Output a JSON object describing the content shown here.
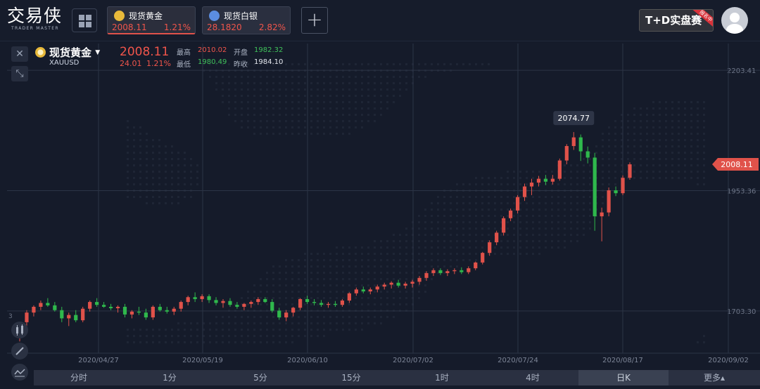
{
  "app": {
    "logo_cn": "交易侠",
    "logo_en": "TRADER MASTER"
  },
  "tabs": [
    {
      "name": "现货黄金",
      "price": "2008.11",
      "pct": "1.21%",
      "coin_color": "#e8b93a"
    },
    {
      "name": "现货白银",
      "price": "28.1820",
      "pct": "2.82%",
      "coin_color": "#5b8de0"
    }
  ],
  "add_label": "+",
  "td_badge": {
    "label": "T+D实盘赛",
    "ribbon": "报名中"
  },
  "instrument": {
    "name": "现货黄金",
    "code": "XAUUSD",
    "price": "2008.11",
    "change": "24.01",
    "pct": "1.21%",
    "high_label": "最高",
    "high": "2010.02",
    "open_label": "开盘",
    "open": "1982.32",
    "low_label": "最低",
    "low": "1980.49",
    "prev_label": "昨收",
    "prev": "1984.10"
  },
  "chart_data": {
    "type": "candlestick",
    "y_ticks": [
      "2203.41",
      "1953.36",
      "1703.30"
    ],
    "x_ticks": [
      "2020/04/27",
      "2020/05/19",
      "2020/06/10",
      "2020/07/02",
      "2020/07/24",
      "2020/08/17",
      "2020/09/02"
    ],
    "ylim": [
      1620,
      2240
    ],
    "current_price": "2008.11",
    "max_label": "2074.77",
    "left_edge_label": "3",
    "candles": [
      [
        1648,
        1680,
        1640,
        1675
      ],
      [
        1680,
        1705,
        1670,
        1700
      ],
      [
        1700,
        1715,
        1692,
        1712
      ],
      [
        1712,
        1725,
        1705,
        1720
      ],
      [
        1720,
        1730,
        1712,
        1715
      ],
      [
        1715,
        1722,
        1702,
        1705
      ],
      [
        1705,
        1712,
        1680,
        1688
      ],
      [
        1688,
        1700,
        1672,
        1695
      ],
      [
        1695,
        1705,
        1680,
        1684
      ],
      [
        1684,
        1712,
        1680,
        1708
      ],
      [
        1708,
        1725,
        1702,
        1722
      ],
      [
        1722,
        1730,
        1712,
        1716
      ],
      [
        1716,
        1722,
        1710,
        1712
      ],
      [
        1712,
        1718,
        1705,
        1709
      ],
      [
        1709,
        1715,
        1700,
        1712
      ],
      [
        1712,
        1718,
        1690,
        1696
      ],
      [
        1696,
        1705,
        1688,
        1702
      ],
      [
        1702,
        1712,
        1695,
        1700
      ],
      [
        1700,
        1708,
        1685,
        1690
      ],
      [
        1690,
        1715,
        1685,
        1712
      ],
      [
        1712,
        1718,
        1702,
        1705
      ],
      [
        1705,
        1712,
        1698,
        1702
      ],
      [
        1702,
        1712,
        1695,
        1708
      ],
      [
        1708,
        1725,
        1702,
        1722
      ],
      [
        1722,
        1735,
        1715,
        1732
      ],
      [
        1732,
        1742,
        1722,
        1728
      ],
      [
        1728,
        1738,
        1722,
        1734
      ],
      [
        1734,
        1738,
        1720,
        1726
      ],
      [
        1726,
        1732,
        1715,
        1720
      ],
      [
        1720,
        1728,
        1710,
        1724
      ],
      [
        1724,
        1730,
        1712,
        1716
      ],
      [
        1716,
        1722,
        1708,
        1712
      ],
      [
        1712,
        1720,
        1705,
        1718
      ],
      [
        1718,
        1725,
        1710,
        1722
      ],
      [
        1722,
        1732,
        1716,
        1728
      ],
      [
        1728,
        1732,
        1720,
        1722
      ],
      [
        1722,
        1728,
        1700,
        1704
      ],
      [
        1704,
        1710,
        1685,
        1690
      ],
      [
        1690,
        1705,
        1682,
        1700
      ],
      [
        1700,
        1712,
        1692,
        1710
      ],
      [
        1710,
        1730,
        1705,
        1728
      ],
      [
        1728,
        1735,
        1718,
        1722
      ],
      [
        1722,
        1728,
        1715,
        1720
      ],
      [
        1720,
        1726,
        1712,
        1716
      ],
      [
        1716,
        1722,
        1710,
        1718
      ],
      [
        1718,
        1724,
        1712,
        1716
      ],
      [
        1716,
        1728,
        1712,
        1725
      ],
      [
        1725,
        1742,
        1720,
        1740
      ],
      [
        1740,
        1752,
        1735,
        1748
      ],
      [
        1748,
        1754,
        1740,
        1744
      ],
      [
        1744,
        1752,
        1738,
        1748
      ],
      [
        1748,
        1758,
        1742,
        1754
      ],
      [
        1754,
        1762,
        1748,
        1758
      ],
      [
        1758,
        1765,
        1750,
        1762
      ],
      [
        1762,
        1768,
        1752,
        1756
      ],
      [
        1756,
        1764,
        1750,
        1760
      ],
      [
        1760,
        1768,
        1752,
        1764
      ],
      [
        1764,
        1776,
        1758,
        1772
      ],
      [
        1772,
        1786,
        1766,
        1782
      ],
      [
        1782,
        1792,
        1776,
        1788
      ],
      [
        1788,
        1792,
        1778,
        1782
      ],
      [
        1782,
        1790,
        1776,
        1786
      ],
      [
        1786,
        1792,
        1780,
        1788
      ],
      [
        1788,
        1794,
        1780,
        1784
      ],
      [
        1784,
        1796,
        1780,
        1792
      ],
      [
        1792,
        1806,
        1788,
        1804
      ],
      [
        1804,
        1826,
        1800,
        1824
      ],
      [
        1824,
        1850,
        1818,
        1846
      ],
      [
        1846,
        1870,
        1840,
        1866
      ],
      [
        1866,
        1900,
        1860,
        1896
      ],
      [
        1896,
        1916,
        1890,
        1912
      ],
      [
        1912,
        1944,
        1906,
        1940
      ],
      [
        1940,
        1968,
        1932,
        1962
      ],
      [
        1962,
        1978,
        1944,
        1970
      ],
      [
        1970,
        1984,
        1962,
        1978
      ],
      [
        1978,
        1986,
        1965,
        1972
      ],
      [
        1972,
        1986,
        1966,
        1978
      ],
      [
        1978,
        2020,
        1974,
        2016
      ],
      [
        2016,
        2050,
        2008,
        2046
      ],
      [
        2046,
        2075,
        2038,
        2064
      ],
      [
        2064,
        2070,
        2015,
        2035
      ],
      [
        2035,
        2045,
        2010,
        2022
      ],
      [
        2022,
        2032,
        1870,
        1900
      ],
      [
        1900,
        1918,
        1848,
        1908
      ],
      [
        1908,
        1960,
        1900,
        1954
      ],
      [
        1954,
        1962,
        1942,
        1948
      ],
      [
        1948,
        1985,
        1944,
        1980
      ],
      [
        1980,
        2012,
        1976,
        2008
      ]
    ]
  },
  "bottom_tabs": [
    "分时",
    "1分",
    "5分",
    "15分",
    "1时",
    "4时",
    "日K",
    "更多▴"
  ],
  "selected_tab": "日K",
  "colors": {
    "up": "#e0524a",
    "down": "#2fb84c",
    "bg": "#151b2a"
  }
}
